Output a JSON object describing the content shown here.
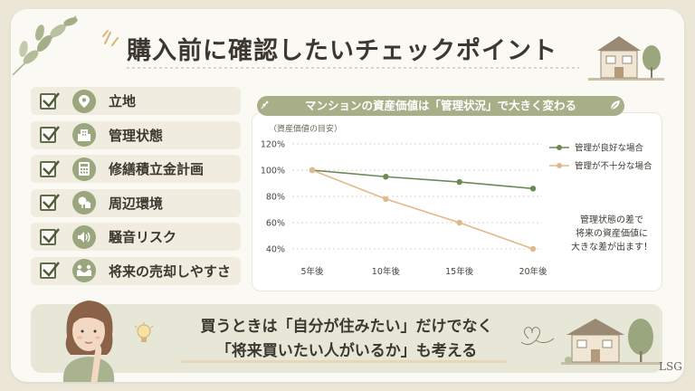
{
  "title": "購入前に確認したいチェックポイント",
  "checklist": [
    {
      "label": "立地",
      "icon": "location-pin-icon"
    },
    {
      "label": "管理状態",
      "icon": "building-icon"
    },
    {
      "label": "修繕積立金計画",
      "icon": "calculator-icon"
    },
    {
      "label": "周辺環境",
      "icon": "park-icon"
    },
    {
      "label": "騒音リスク",
      "icon": "speaker-icon"
    },
    {
      "label": "将来の売却しやすさ",
      "icon": "handshake-icon"
    }
  ],
  "chart_banner": "マンションの資産価値は「管理状況」で大きく変わる",
  "chart_data": {
    "type": "line",
    "title": "マンションの資産価値は「管理状況」で大きく変わる",
    "ylabel": "（資産価値の目安）",
    "categories": [
      "5年後",
      "10年後",
      "15年後",
      "20年後"
    ],
    "yticks": [
      "40%",
      "60%",
      "80%",
      "100%",
      "120%"
    ],
    "ylim": [
      40,
      120
    ],
    "series": [
      {
        "name": "管理が良好な場合",
        "values": [
          100,
          95,
          91,
          86
        ],
        "color": "#6b8a55"
      },
      {
        "name": "管理が不十分な場合",
        "values": [
          100,
          78,
          60,
          40
        ],
        "color": "#e0b98a"
      }
    ],
    "legend": "top-right",
    "grid": true
  },
  "note_lines": [
    "管理状態の差で",
    "将来の資産価値に",
    "大きな差が出ます！"
  ],
  "slogan": {
    "line1": "買うときは「自分が住みたい」だけでなく",
    "line2": "「将来買いたい人がいるか」も考える"
  },
  "brand": "LSG",
  "colors": {
    "accent_green": "#9aa67d",
    "good_line": "#6b8a55",
    "poor_line": "#e0b98a"
  }
}
